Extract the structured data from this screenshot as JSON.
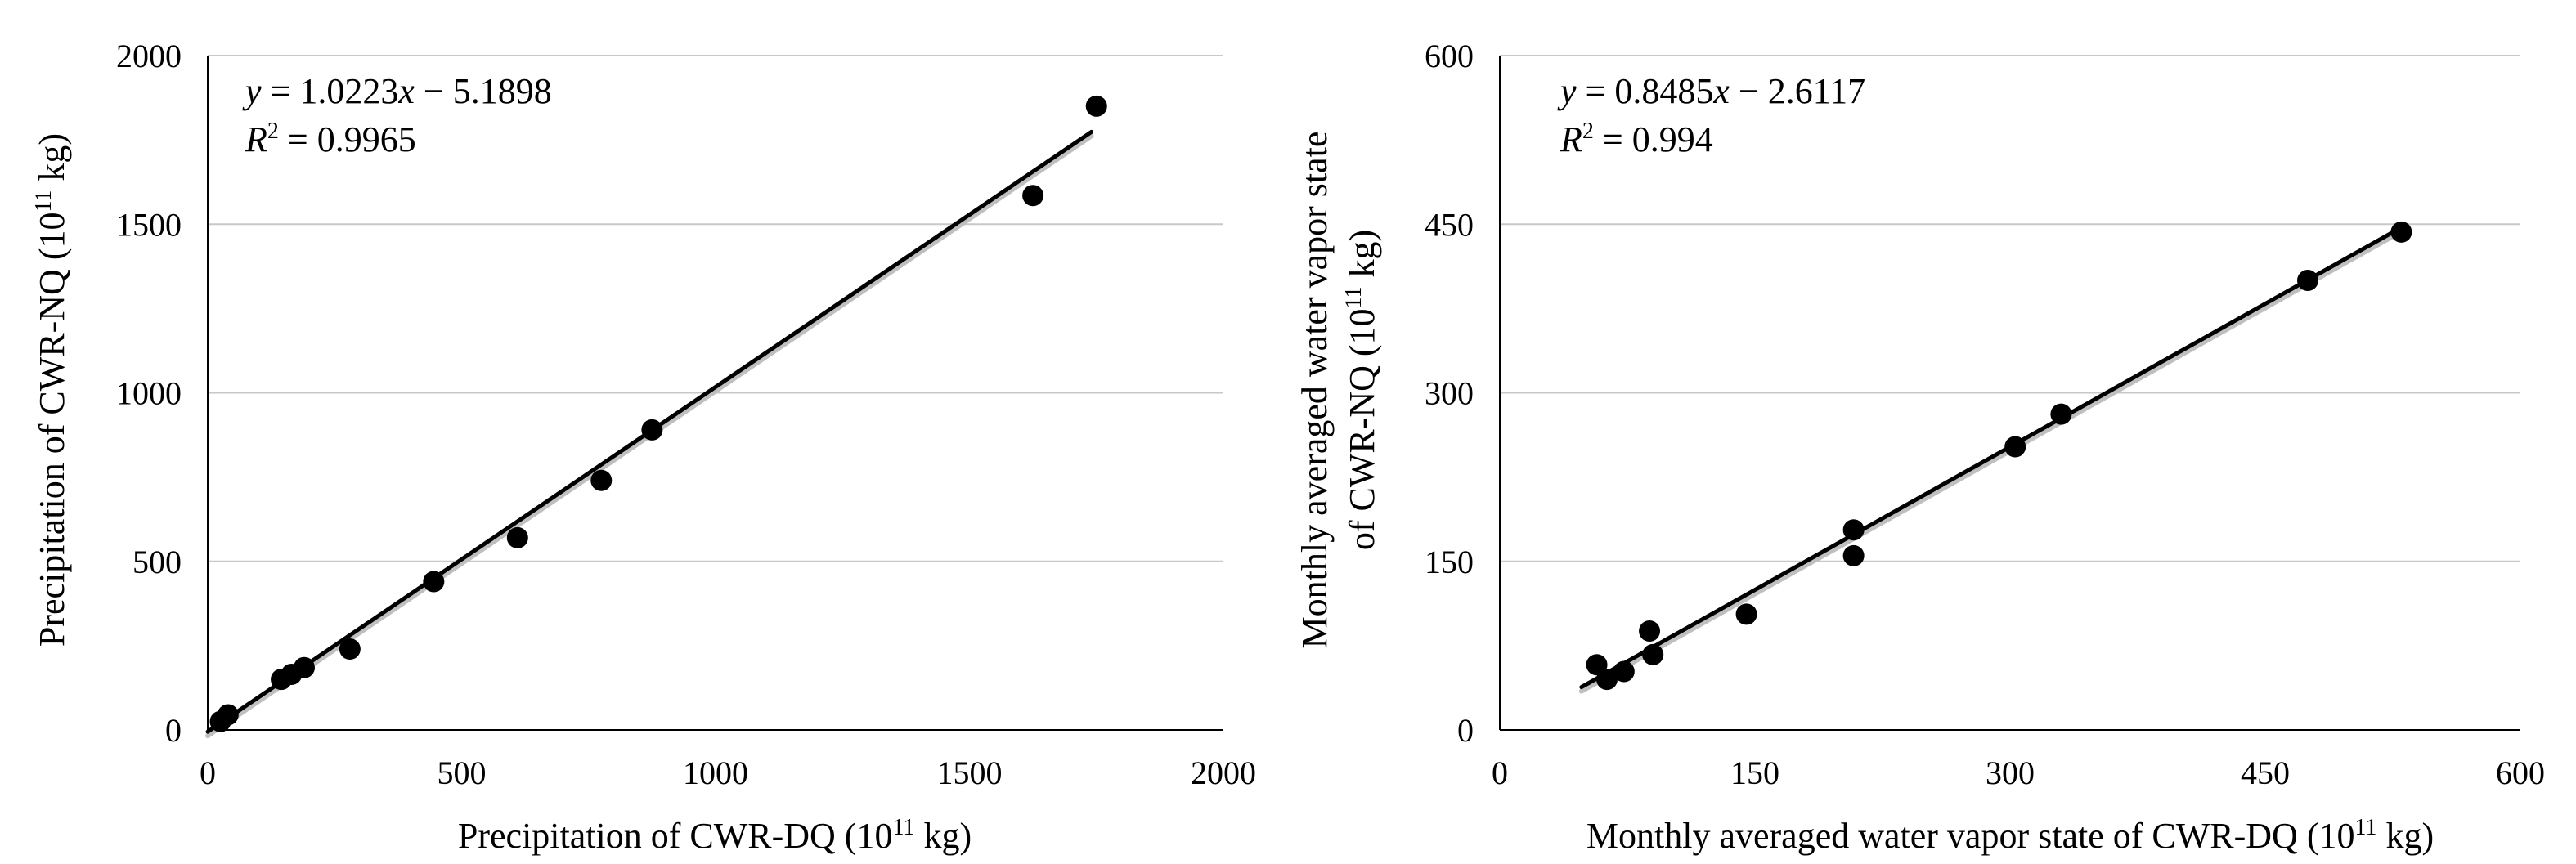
{
  "colors": {
    "point": "#000000",
    "trendline": "#000000",
    "trendline_shadow": "#bfbfbf",
    "gridline": "#c8c8c8",
    "axis": "#000000",
    "background": "#ffffff"
  },
  "chart_data": [
    {
      "type": "scatter",
      "title": "",
      "xlabel": "Precipitation of CWR-DQ (10",
      "xlabel_sup": "11",
      "xlabel_tail": " kg)",
      "ylabel": "Precipitation of CWR-NQ (10",
      "ylabel_sup": "11",
      "ylabel_tail": " kg)",
      "xlim": [
        0,
        2000
      ],
      "ylim": [
        0,
        2000
      ],
      "xticks": [
        0,
        500,
        1000,
        1500,
        2000
      ],
      "yticks": [
        0,
        500,
        1000,
        1500,
        2000
      ],
      "grid": "horizontal",
      "points": [
        {
          "x": 25,
          "y": 25
        },
        {
          "x": 40,
          "y": 45
        },
        {
          "x": 145,
          "y": 150
        },
        {
          "x": 165,
          "y": 165
        },
        {
          "x": 190,
          "y": 185
        },
        {
          "x": 280,
          "y": 240
        },
        {
          "x": 445,
          "y": 440
        },
        {
          "x": 610,
          "y": 570
        },
        {
          "x": 775,
          "y": 740
        },
        {
          "x": 875,
          "y": 890
        },
        {
          "x": 1625,
          "y": 1585
        },
        {
          "x": 1750,
          "y": 1850
        }
      ],
      "trendline": {
        "slope": 1.0223,
        "intercept": -5.1898,
        "x_from": 0,
        "x_to": 1740
      },
      "equation": {
        "y": "y",
        "eq_rest": " = 1.0223",
        "x": "x",
        "tail": " − 5.1898",
        "r": "R",
        "r_sup": "2",
        "r_rest": " = 0.9965"
      }
    },
    {
      "type": "scatter",
      "title": "",
      "xlabel": "Monthly averaged water vapor state of CWR-DQ (10",
      "xlabel_sup": "11",
      "xlabel_tail": " kg)",
      "ylabel_line1": "Monthly averaged water vapor state",
      "ylabel": "of CWR-NQ (10",
      "ylabel_sup": "11",
      "ylabel_tail": " kg)",
      "xlim": [
        0,
        600
      ],
      "ylim": [
        0,
        600
      ],
      "xticks": [
        0,
        150,
        300,
        450,
        600
      ],
      "yticks": [
        0,
        150,
        300,
        450,
        600
      ],
      "grid": "horizontal",
      "points": [
        {
          "x": 57,
          "y": 58
        },
        {
          "x": 63,
          "y": 45
        },
        {
          "x": 73,
          "y": 52
        },
        {
          "x": 88,
          "y": 88
        },
        {
          "x": 90,
          "y": 67
        },
        {
          "x": 145,
          "y": 103
        },
        {
          "x": 208,
          "y": 178
        },
        {
          "x": 208,
          "y": 155
        },
        {
          "x": 303,
          "y": 252
        },
        {
          "x": 330,
          "y": 281
        },
        {
          "x": 475,
          "y": 400
        },
        {
          "x": 530,
          "y": 443
        }
      ],
      "trendline": {
        "slope": 0.8485,
        "intercept": -2.6117,
        "x_from": 48,
        "x_to": 530
      },
      "equation": {
        "y": "y",
        "eq_rest": " = 0.8485",
        "x": "x",
        "tail": " − 2.6117",
        "r": "R",
        "r_sup": "2",
        "r_rest": " = 0.994"
      }
    }
  ]
}
